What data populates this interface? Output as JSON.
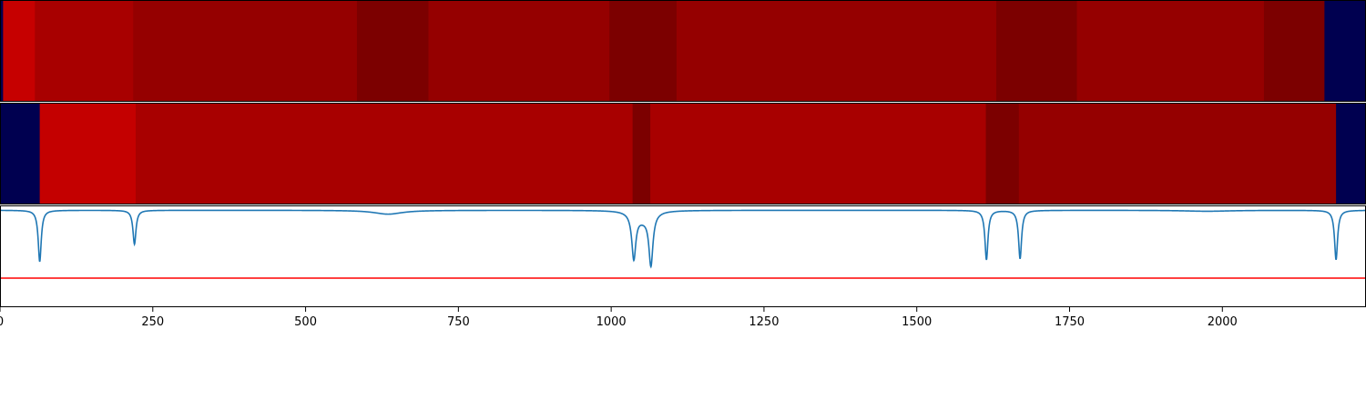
{
  "chart_data": {
    "type": "heatmap",
    "title": "",
    "xlabel": "",
    "ylabel": "",
    "xlim": [
      0,
      2235
    ],
    "xticks": [
      0,
      250,
      500,
      750,
      1000,
      1250,
      1500,
      1750,
      2000
    ],
    "grid": false,
    "legend": "none",
    "tracks": [
      {
        "segments": [
          {
            "start": 0,
            "end": 5,
            "color": "#000050"
          },
          {
            "start": 5,
            "end": 57,
            "color": "#c60000"
          },
          {
            "start": 57,
            "end": 218,
            "color": "#a80000"
          },
          {
            "start": 218,
            "end": 584,
            "color": "#950000"
          },
          {
            "start": 584,
            "end": 701,
            "color": "#7c0000"
          },
          {
            "start": 701,
            "end": 997,
            "color": "#950000"
          },
          {
            "start": 997,
            "end": 1107,
            "color": "#7c0000"
          },
          {
            "start": 1107,
            "end": 1630,
            "color": "#950000"
          },
          {
            "start": 1630,
            "end": 1762,
            "color": "#7c0000"
          },
          {
            "start": 1762,
            "end": 2068,
            "color": "#950000"
          },
          {
            "start": 2068,
            "end": 2167,
            "color": "#7c0000"
          },
          {
            "start": 2167,
            "end": 2235,
            "color": "#000050"
          }
        ]
      },
      {
        "segments": [
          {
            "start": 0,
            "end": 65,
            "color": "#000050"
          },
          {
            "start": 65,
            "end": 222,
            "color": "#c40000"
          },
          {
            "start": 222,
            "end": 1035,
            "color": "#a80000"
          },
          {
            "start": 1035,
            "end": 1064,
            "color": "#7c0000"
          },
          {
            "start": 1064,
            "end": 1613,
            "color": "#a80000"
          },
          {
            "start": 1613,
            "end": 1667,
            "color": "#7c0000"
          },
          {
            "start": 1667,
            "end": 2186,
            "color": "#950000"
          },
          {
            "start": 2186,
            "end": 2235,
            "color": "#000050"
          }
        ]
      }
    ],
    "signal": {
      "color": "#1f77b4",
      "ylim": [
        -1.0,
        0.05
      ],
      "baseline": 0.0,
      "dips": [
        {
          "x": 65,
          "depth": 0.53,
          "width": 3
        },
        {
          "x": 220,
          "depth": 0.35,
          "width": 3
        },
        {
          "x": 635,
          "depth": 0.04,
          "width": 28
        },
        {
          "x": 1037,
          "depth": 0.47,
          "width": 4
        },
        {
          "x": 1065,
          "depth": 0.53,
          "width": 4
        },
        {
          "x": 1052,
          "depth": 0.08,
          "width": 14
        },
        {
          "x": 1614,
          "depth": 0.51,
          "width": 3
        },
        {
          "x": 1669,
          "depth": 0.5,
          "width": 3
        },
        {
          "x": 1975,
          "depth": 0.01,
          "width": 45
        },
        {
          "x": 2186,
          "depth": 0.51,
          "width": 3
        }
      ]
    },
    "threshold": {
      "value": -0.7,
      "color": "#ff0000"
    }
  }
}
